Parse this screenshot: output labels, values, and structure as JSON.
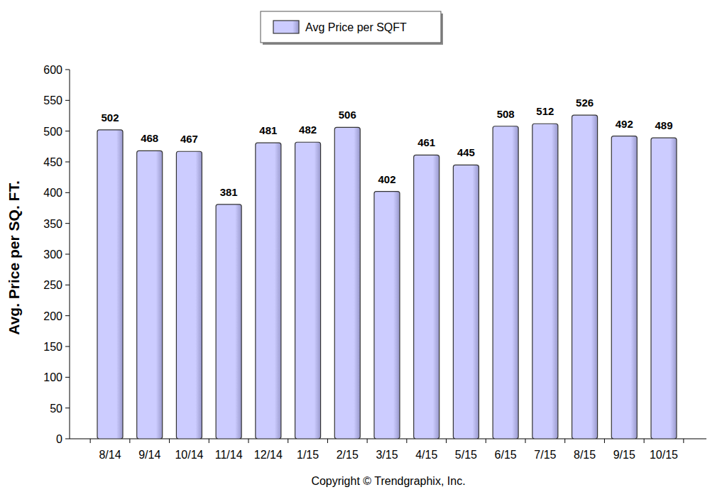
{
  "chart_data": {
    "type": "bar",
    "y_label": "Avg. Price per SQ. FT.",
    "source": "Copyright © Trendgraphix, Inc.",
    "categories": [
      "8/14",
      "9/14",
      "10/14",
      "11/14",
      "12/14",
      "1/15",
      "2/15",
      "3/15",
      "4/15",
      "5/15",
      "6/15",
      "7/15",
      "8/15",
      "9/15",
      "10/15"
    ],
    "series": [
      {
        "name": "Avg Price per SQFT",
        "color": "#ccccff",
        "values": [
          502,
          468,
          467,
          381,
          481,
          482,
          506,
          402,
          461,
          445,
          508,
          512,
          526,
          492,
          489
        ]
      }
    ],
    "ylim": [
      0,
      600
    ],
    "yticks": [
      0,
      50,
      100,
      150,
      200,
      250,
      300,
      350,
      400,
      450,
      500,
      550,
      600
    ],
    "grid": false,
    "legend": "top",
    "data_labels": true
  }
}
